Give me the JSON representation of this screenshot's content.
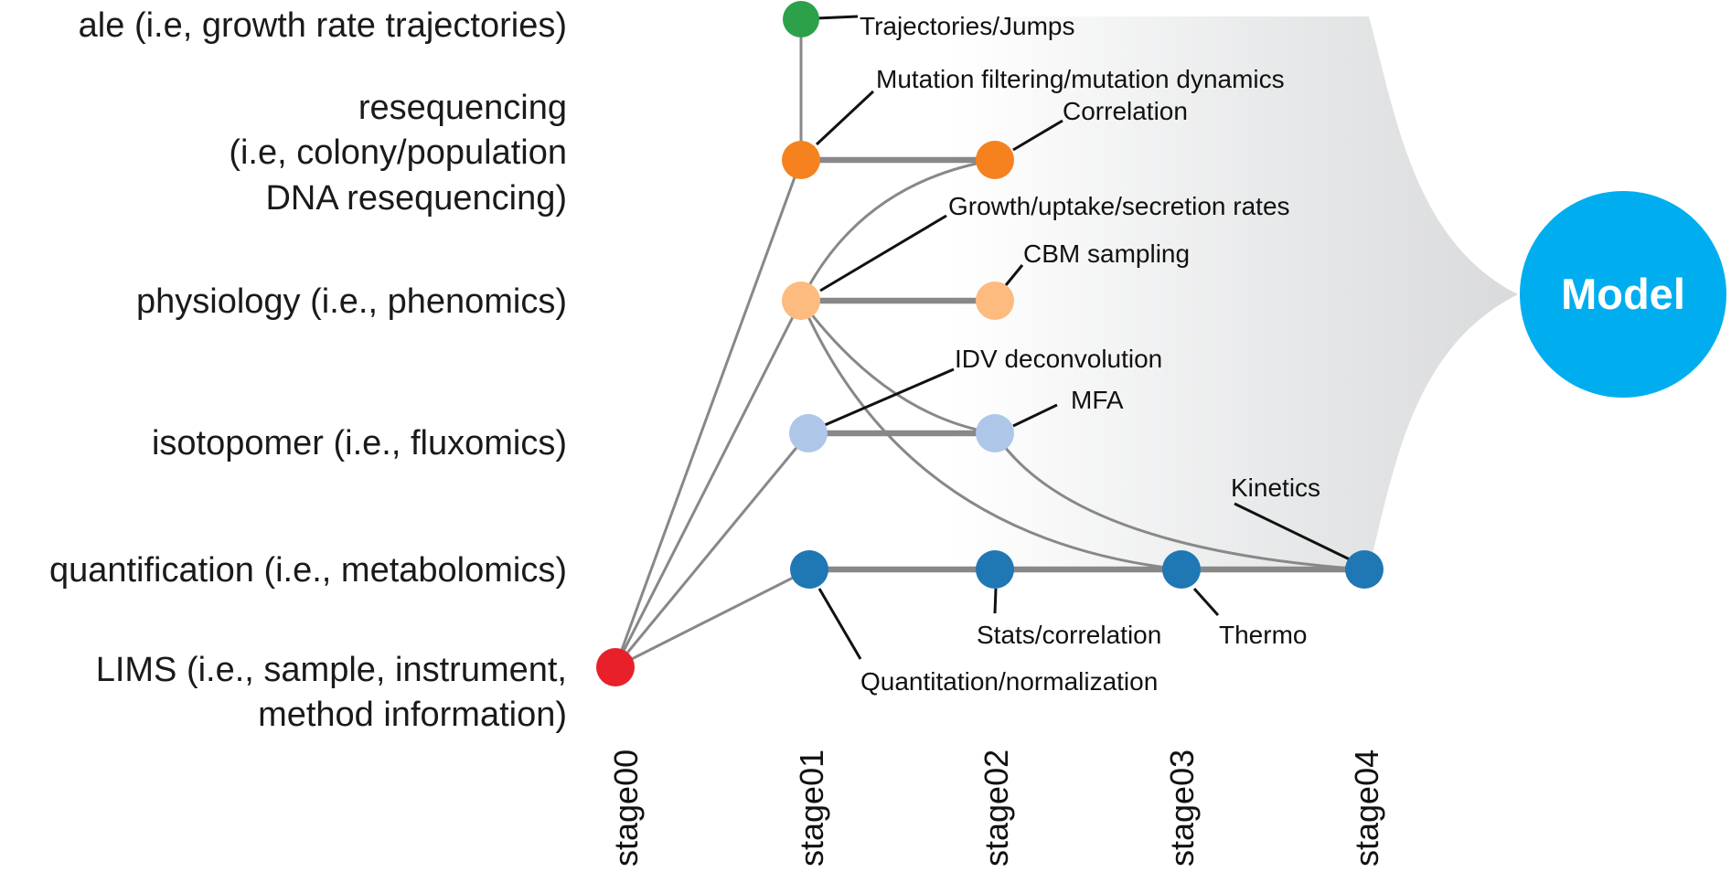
{
  "rows": [
    {
      "id": "ale",
      "lines": [
        "ale (i.e, growth rate trajectories)"
      ]
    },
    {
      "id": "resequencing",
      "lines": [
        "resequencing",
        "(i.e, colony/population",
        "DNA resequencing)"
      ]
    },
    {
      "id": "physiology",
      "lines": [
        "physiology (i.e., phenomics)"
      ]
    },
    {
      "id": "isotopomer",
      "lines": [
        "isotopomer (i.e., fluxomics)"
      ]
    },
    {
      "id": "quantification",
      "lines": [
        "quantification (i.e., metabolomics)"
      ]
    },
    {
      "id": "lims",
      "lines": [
        "LIMS (i.e., sample, instrument,",
        "method information)"
      ]
    }
  ],
  "stages": [
    "stage00",
    "stage01",
    "stage02",
    "stage03",
    "stage04"
  ],
  "annotations": {
    "trajectories": "Trajectories/Jumps",
    "mutation": "Mutation filtering/mutation dynamics",
    "correlation": "Correlation",
    "growth": "Growth/uptake/secretion rates",
    "cbm": "CBM sampling",
    "idv": "IDV deconvolution",
    "mfa": "MFA",
    "kinetics": "Kinetics",
    "stats": "Stats/correlation",
    "thermo": "Thermo",
    "quantitation": "Quantitation/normalization"
  },
  "model": {
    "label": "Model",
    "color": "#00aeef"
  },
  "colors": {
    "ale": "#2ca14a",
    "resequencing": "#f5821f",
    "physiology": "#fdbb7f",
    "isotopomer": "#aec7e8",
    "quantification": "#1f77b4",
    "lims": "#e8202a",
    "edge": "#888888"
  }
}
